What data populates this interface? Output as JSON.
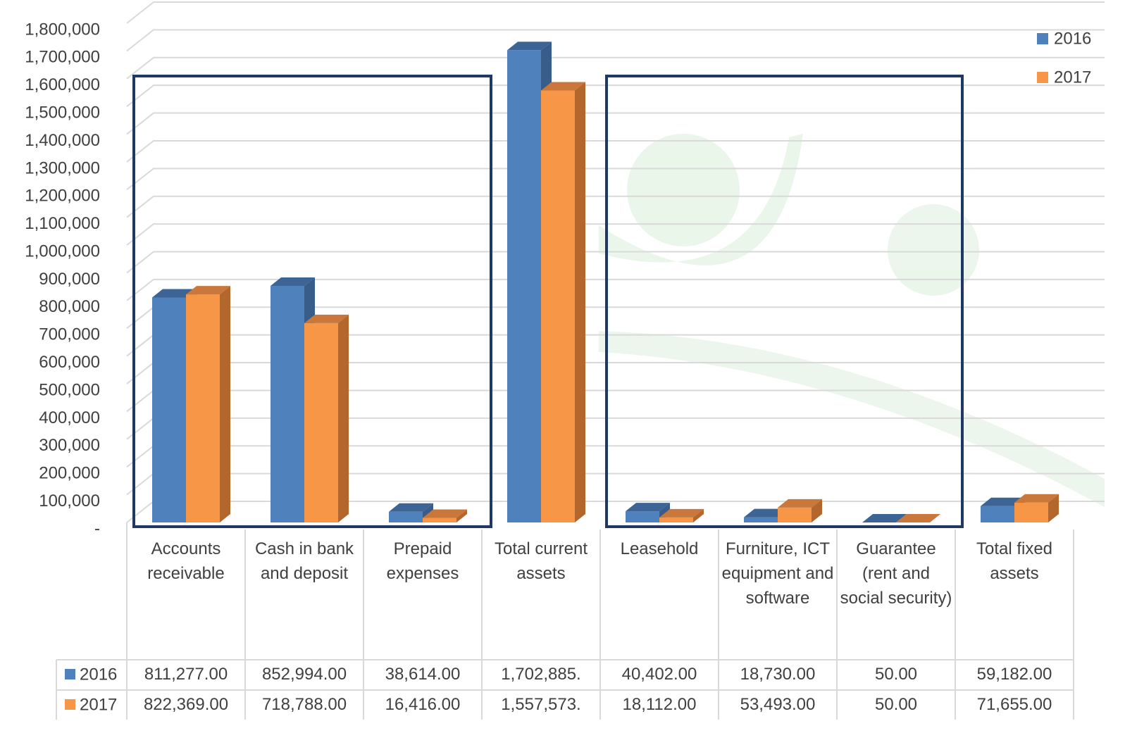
{
  "chart_data": {
    "type": "bar3d",
    "categories": [
      "Accounts receivable",
      "Cash in bank and deposit",
      "Prepaid expenses",
      "Total current assets",
      "Leasehold",
      "Furniture, ICT equipment and software",
      "Guarantee (rent and social security)",
      "Total fixed assets"
    ],
    "series": [
      {
        "name": "2016",
        "color": "#4f81bd",
        "values": [
          811277,
          852994,
          38614,
          1702885,
          40402,
          18730,
          50,
          59182
        ],
        "value_labels": [
          "811,277.00",
          "852,994.00",
          "38,614.00",
          "1,702,885.",
          "40,402.00",
          "18,730.00",
          "50.00",
          "59,182.00"
        ]
      },
      {
        "name": "2017",
        "color": "#f79646",
        "values": [
          822369,
          718788,
          16416,
          1557573,
          18112,
          53493,
          50,
          71655
        ],
        "value_labels": [
          "822,369.00",
          "718,788.00",
          "16,416.00",
          "1,557,573.",
          "18,112.00",
          "53,493.00",
          "50.00",
          "71,655.00"
        ]
      }
    ],
    "ylim": [
      0,
      1800000
    ],
    "yticks": [
      {
        "value": 0,
        "label": "-"
      },
      {
        "value": 100000,
        "label": "100,000"
      },
      {
        "value": 200000,
        "label": "200,000"
      },
      {
        "value": 300000,
        "label": "300,000"
      },
      {
        "value": 400000,
        "label": "400,000"
      },
      {
        "value": 500000,
        "label": "500,000"
      },
      {
        "value": 600000,
        "label": "600,000"
      },
      {
        "value": 700000,
        "label": "700,000"
      },
      {
        "value": 800000,
        "label": "800,000"
      },
      {
        "value": 900000,
        "label": "900,000"
      },
      {
        "value": 1000000,
        "label": "1,000,000"
      },
      {
        "value": 1100000,
        "label": "1,100,000"
      },
      {
        "value": 1200000,
        "label": "1,200,000"
      },
      {
        "value": 1300000,
        "label": "1,300,000"
      },
      {
        "value": 1400000,
        "label": "1,400,000"
      },
      {
        "value": 1500000,
        "label": "1,500,000"
      },
      {
        "value": 1600000,
        "label": "1,600,000"
      },
      {
        "value": 1700000,
        "label": "1,700,000"
      },
      {
        "value": 1800000,
        "label": "1,800,000"
      }
    ],
    "grid": true,
    "legend": "top-right"
  }
}
